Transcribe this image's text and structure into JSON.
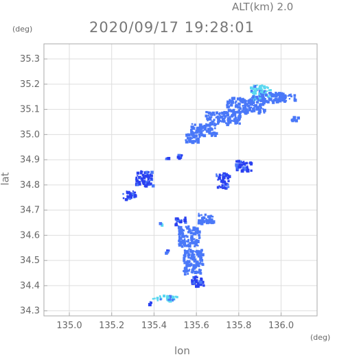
{
  "header": {
    "altitude": "ALT(km) 2.0",
    "timestamp": "2020/09/17 19:28:01"
  },
  "chart_data": {
    "type": "heatmap",
    "title": "2020/09/17 19:28:01",
    "subtitle": "ALT(km) 2.0",
    "xlabel": "lon",
    "ylabel": "lat",
    "x_unit": "(deg)",
    "y_unit": "(deg)",
    "xlim": [
      134.88,
      136.17
    ],
    "ylim": [
      34.28,
      35.36
    ],
    "xticks": [
      "135.0",
      "135.2",
      "135.4",
      "135.6",
      "135.8",
      "136.0"
    ],
    "yticks": [
      "34.3",
      "34.4",
      "34.5",
      "34.6",
      "34.7",
      "34.8",
      "34.9",
      "35.0",
      "35.1",
      "35.2",
      "35.3"
    ],
    "grid": true,
    "colors": {
      "low": "#2a40f0",
      "mid": "#4a78f8",
      "high": "#5ad8f0",
      "axis": "#aaaaaa"
    },
    "echo_regions": [
      {
        "lon": 135.9,
        "lat": 35.17,
        "w": 0.1,
        "h": 0.06,
        "level": "high"
      },
      {
        "lon": 135.83,
        "lat": 35.12,
        "w": 0.18,
        "h": 0.06,
        "level": "mid"
      },
      {
        "lon": 135.95,
        "lat": 35.15,
        "w": 0.12,
        "h": 0.04,
        "level": "mid"
      },
      {
        "lon": 136.03,
        "lat": 35.15,
        "w": 0.06,
        "h": 0.03,
        "level": "mid"
      },
      {
        "lon": 135.72,
        "lat": 35.07,
        "w": 0.16,
        "h": 0.05,
        "level": "mid"
      },
      {
        "lon": 135.63,
        "lat": 35.02,
        "w": 0.12,
        "h": 0.05,
        "level": "mid"
      },
      {
        "lon": 135.58,
        "lat": 34.99,
        "w": 0.07,
        "h": 0.03,
        "level": "mid"
      },
      {
        "lon": 136.06,
        "lat": 35.07,
        "w": 0.03,
        "h": 0.02,
        "level": "mid"
      },
      {
        "lon": 135.52,
        "lat": 34.92,
        "w": 0.03,
        "h": 0.02,
        "level": "low"
      },
      {
        "lon": 135.46,
        "lat": 34.91,
        "w": 0.02,
        "h": 0.01,
        "level": "low"
      },
      {
        "lon": 135.72,
        "lat": 34.82,
        "w": 0.06,
        "h": 0.06,
        "level": "low"
      },
      {
        "lon": 135.82,
        "lat": 34.88,
        "w": 0.08,
        "h": 0.04,
        "level": "low"
      },
      {
        "lon": 135.35,
        "lat": 34.83,
        "w": 0.08,
        "h": 0.06,
        "level": "low"
      },
      {
        "lon": 135.28,
        "lat": 34.76,
        "w": 0.06,
        "h": 0.04,
        "level": "low"
      },
      {
        "lon": 135.52,
        "lat": 34.66,
        "w": 0.05,
        "h": 0.03,
        "level": "low"
      },
      {
        "lon": 135.64,
        "lat": 34.67,
        "w": 0.07,
        "h": 0.04,
        "level": "mid"
      },
      {
        "lon": 135.56,
        "lat": 34.6,
        "w": 0.1,
        "h": 0.08,
        "level": "mid"
      },
      {
        "lon": 135.58,
        "lat": 34.5,
        "w": 0.09,
        "h": 0.1,
        "level": "mid"
      },
      {
        "lon": 135.6,
        "lat": 34.42,
        "w": 0.06,
        "h": 0.04,
        "level": "low"
      },
      {
        "lon": 135.46,
        "lat": 34.54,
        "w": 0.02,
        "h": 0.01,
        "level": "low"
      },
      {
        "lon": 135.43,
        "lat": 34.65,
        "w": 0.02,
        "h": 0.01,
        "level": "high"
      },
      {
        "lon": 135.45,
        "lat": 34.355,
        "w": 0.12,
        "h": 0.02,
        "level": "high"
      },
      {
        "lon": 135.38,
        "lat": 34.335,
        "w": 0.03,
        "h": 0.01,
        "level": "low"
      }
    ]
  }
}
